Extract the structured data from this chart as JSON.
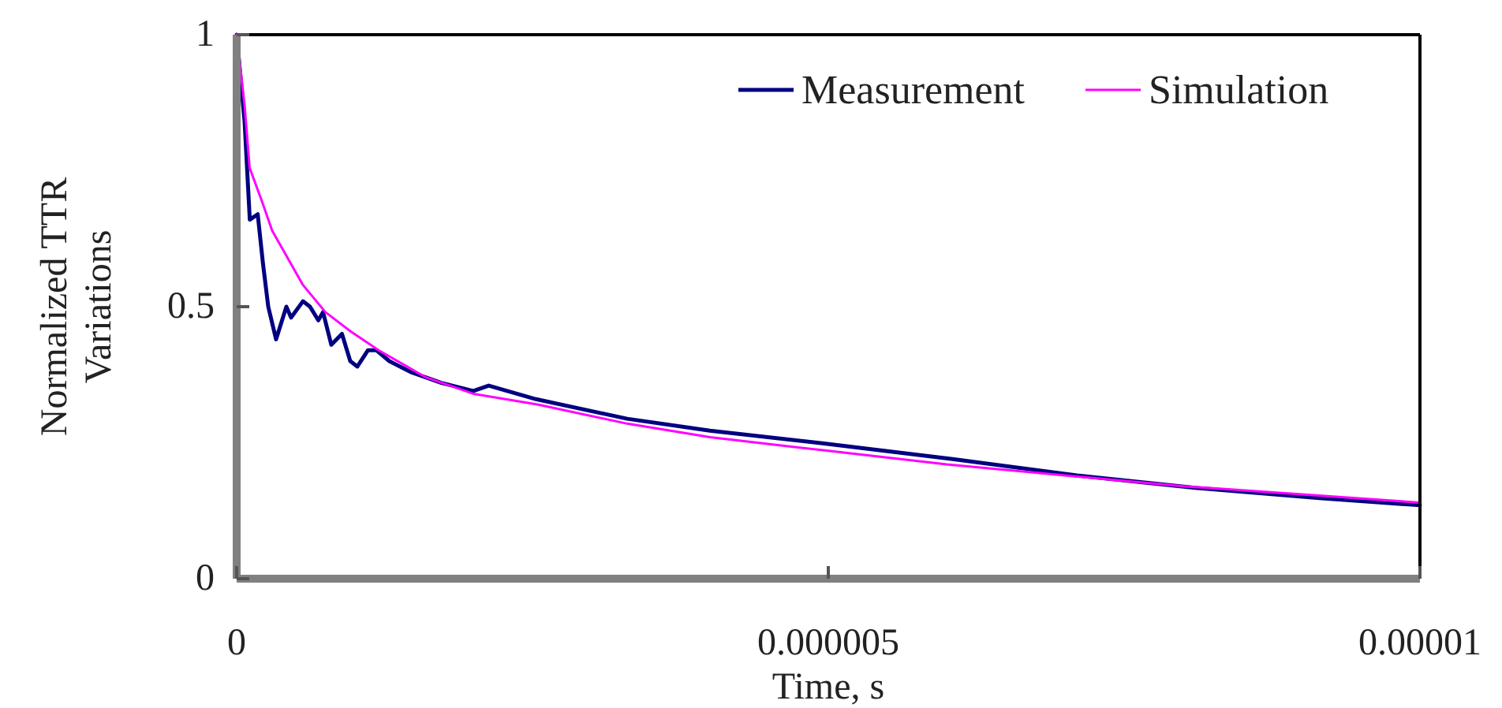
{
  "chart_data": {
    "type": "line",
    "xlabel": "Time, s",
    "ylabel": "Normalized TTR Variations",
    "xlim": [
      0,
      1e-05
    ],
    "ylim": [
      0,
      1
    ],
    "xticks": [
      0,
      {
        "value": 5e-06,
        "label": "0.000005"
      },
      {
        "value": 1e-05,
        "label": "0.00001"
      }
    ],
    "yticks": [
      0,
      0.5,
      1
    ],
    "grid": false,
    "legend": "top right",
    "marker": "none",
    "line_style": "solid",
    "series": [
      {
        "name": "Measurement",
        "color": "#000080",
        "x": [
          0,
          6.7e-08,
          1.11e-07,
          1.78e-07,
          2.22e-07,
          2.67e-07,
          3.33e-07,
          4.2e-07,
          4.6e-07,
          5.6e-07,
          6.2e-07,
          6.9e-07,
          7.3e-07,
          8e-07,
          8.9e-07,
          9.6e-07,
          1.02e-06,
          1.11e-06,
          1.18e-06,
          1.29e-06,
          1.47e-06,
          1.73e-06,
          2e-06,
          2.13e-06,
          2.53e-06,
          3.3e-06,
          4e-06,
          4.95e-06,
          6.05e-06,
          7.1e-06,
          8.1e-06,
          9.15e-06,
          1e-05
        ],
        "values": [
          1,
          0.84,
          0.66,
          0.67,
          0.58,
          0.5,
          0.44,
          0.5,
          0.48,
          0.51,
          0.5,
          0.475,
          0.49,
          0.43,
          0.45,
          0.4,
          0.39,
          0.42,
          0.42,
          0.4,
          0.38,
          0.36,
          0.345,
          0.355,
          0.33,
          0.294,
          0.272,
          0.249,
          0.22,
          0.19,
          0.167,
          0.148,
          0.135
        ]
      },
      {
        "name": "Simulation",
        "color": "#ff00ff",
        "x": [
          0,
          6.7e-08,
          1.1e-07,
          2.2e-07,
          3e-07,
          4.3e-07,
          5.6e-07,
          7.5e-07,
          9.6e-07,
          1.2e-06,
          1.6e-06,
          2e-06,
          2.55e-06,
          3.3e-06,
          4e-06,
          5e-06,
          6e-06,
          7e-06,
          8e-06,
          9e-06,
          1e-05
        ],
        "values": [
          1,
          0.87,
          0.755,
          0.69,
          0.64,
          0.59,
          0.54,
          0.49,
          0.455,
          0.42,
          0.37,
          0.34,
          0.32,
          0.285,
          0.26,
          0.235,
          0.21,
          0.19,
          0.17,
          0.155,
          0.14
        ]
      }
    ]
  }
}
